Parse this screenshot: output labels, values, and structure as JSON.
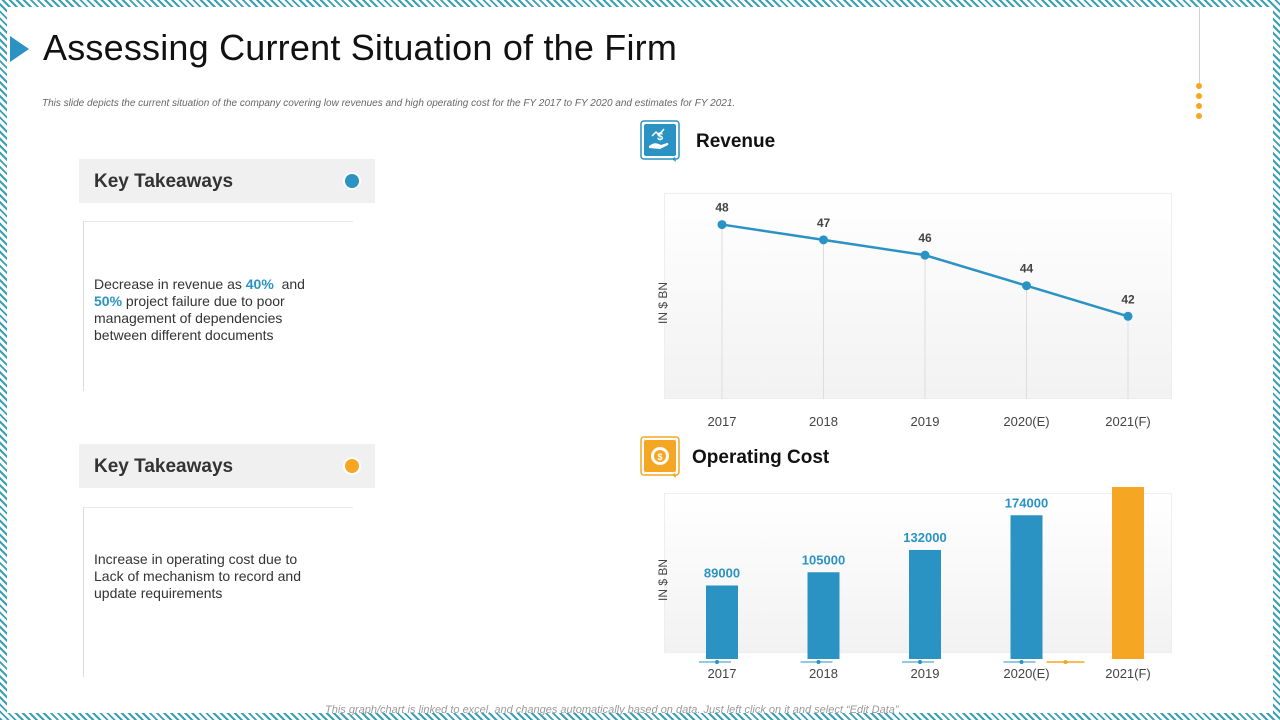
{
  "title": "Assessing Current Situation of the Firm",
  "subtitle": "This slide depicts the current situation of the company covering low revenues and high operating cost for the FY 2017 to FY 2020 and estimates for FY 2021.",
  "footer_note": "This graph/chart is linked to excel, and changes automatically based on data. Just left click on it and select “Edit Data”.",
  "colors": {
    "accent_blue": "#2a93c4",
    "accent_orange": "#f5a623"
  },
  "takeaways": [
    {
      "heading": "Key Takeaways",
      "dot_color": "#2a93c4",
      "text_a": "Decrease in revenue as",
      "highlight_a": "40%",
      "text_b": "and",
      "highlight_b": "50%",
      "text_c": "project failure due to poor management of dependencies between different documents"
    },
    {
      "heading": "Key Takeaways",
      "dot_color": "#f5a623",
      "text": "Increase in operating cost due to Lack of mechanism to record and update requirements"
    }
  ],
  "chart_data": [
    {
      "type": "line",
      "title": "Revenue",
      "icon": "money-hand-icon",
      "ylabel": "IN $ BN",
      "xlabel": "",
      "categories": [
        "2017",
        "2018",
        "2019",
        "2020(E)",
        "2021(F)"
      ],
      "values": [
        48,
        47,
        46,
        44,
        42
      ],
      "ylim": [
        36,
        50
      ],
      "grid": false,
      "color": "#2a93c4"
    },
    {
      "type": "bar",
      "title": "Operating Cost",
      "icon": "gear-dollar-icon",
      "ylabel": "IN $ BN",
      "xlabel": "",
      "categories": [
        "2017",
        "2018",
        "2019",
        "2020(E)",
        "2021(F)"
      ],
      "values": [
        89000,
        105000,
        132000,
        174000,
        220500
      ],
      "bar_colors": [
        "#2a93c4",
        "#2a93c4",
        "#2a93c4",
        "#2a93c4",
        "#f5a623"
      ],
      "ylim": [
        0,
        230000
      ],
      "grid": false
    }
  ]
}
